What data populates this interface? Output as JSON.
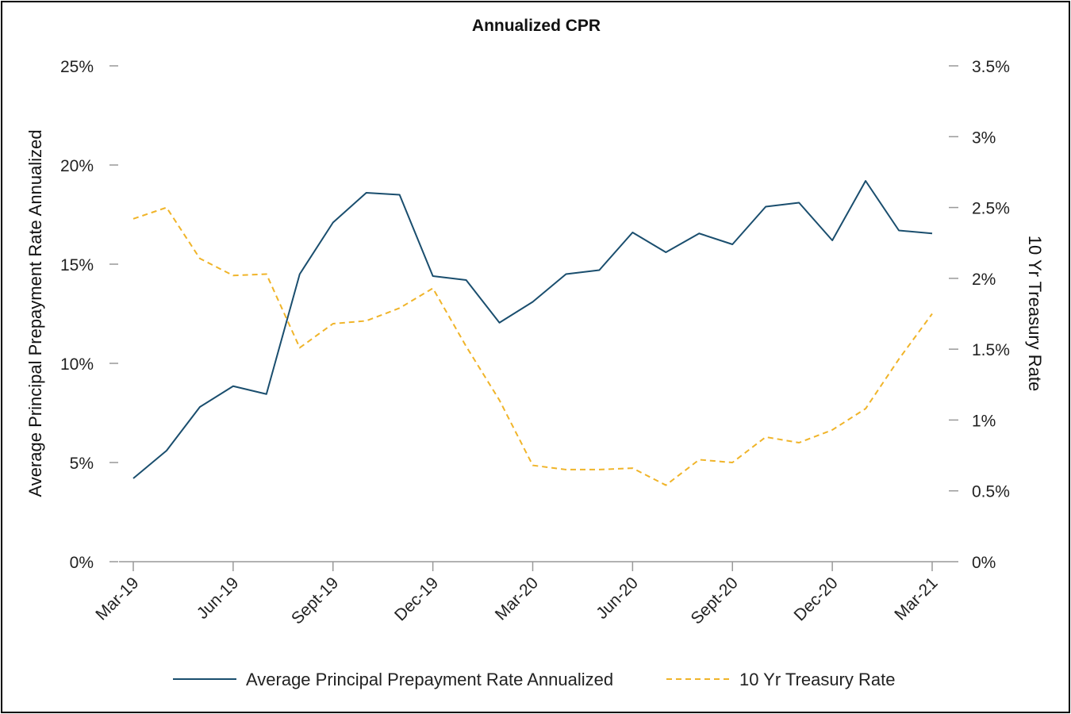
{
  "chart_data": {
    "type": "line",
    "title": "Annualized CPR",
    "x": [
      "Mar-19",
      "Apr-19",
      "May-19",
      "Jun-19",
      "Jul-19",
      "Aug-19",
      "Sept-19",
      "Oct-19",
      "Nov-19",
      "Dec-19",
      "Jan-20",
      "Feb-20",
      "Mar-20",
      "Apr-20",
      "May-20",
      "Jun-20",
      "Jul-20",
      "Aug-20",
      "Sept-20",
      "Oct-20",
      "Nov-20",
      "Dec-20",
      "Jan-21",
      "Feb-21",
      "Mar-21"
    ],
    "xtick_labels": [
      "Mar-19",
      "Jun-19",
      "Sept-19",
      "Dec-19",
      "Mar-20",
      "Jun-20",
      "Sept-20",
      "Dec-20",
      "Mar-21"
    ],
    "ylabel_left": "Average Principal Prepayment Rate Annualized",
    "ylabel_right": "10 Yr Treasury Rate",
    "ylim_left": [
      0,
      25
    ],
    "ylim_right": [
      0,
      3.5
    ],
    "yticks_left": [
      "0%",
      "5%",
      "10%",
      "15%",
      "20%",
      "25%"
    ],
    "yticks_right": [
      "0%",
      "0.5%",
      "1%",
      "1.5%",
      "2%",
      "2.5%",
      "3%",
      "3.5%"
    ],
    "series": [
      {
        "name": "Average Principal Prepayment Rate Annualized",
        "axis": "left",
        "style": "solid",
        "color": "#1a4e6e",
        "values": [
          4.2,
          5.6,
          7.8,
          8.85,
          8.45,
          14.5,
          17.1,
          18.6,
          18.5,
          14.4,
          14.2,
          12.05,
          13.1,
          14.5,
          14.7,
          16.6,
          15.6,
          16.55,
          16.0,
          17.9,
          18.1,
          16.2,
          19.2,
          16.7,
          16.55
        ]
      },
      {
        "name": "10 Yr Treasury Rate",
        "axis": "right",
        "style": "dashed",
        "color": "#f0b429",
        "values": [
          2.42,
          2.5,
          2.14,
          2.02,
          2.03,
          1.51,
          1.68,
          1.7,
          1.79,
          1.93,
          1.52,
          1.14,
          0.68,
          0.65,
          0.65,
          0.66,
          0.54,
          0.72,
          0.7,
          0.88,
          0.84,
          0.93,
          1.08,
          1.43,
          1.75
        ]
      }
    ],
    "legend_position": "bottom"
  }
}
